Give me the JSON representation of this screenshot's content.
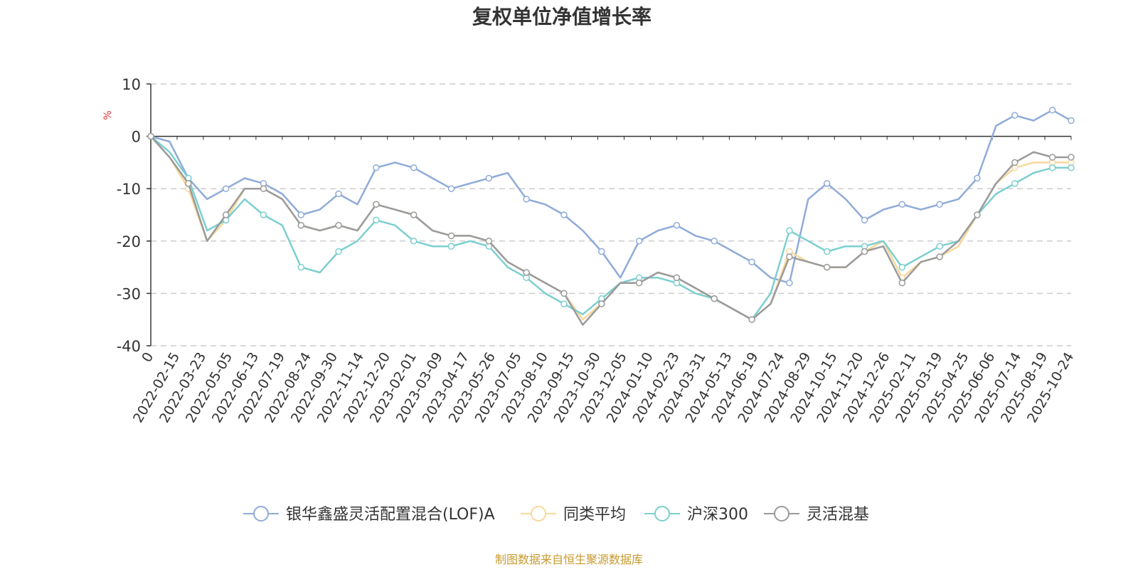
{
  "chart_data": {
    "type": "line",
    "title": "复权单位净值增长率",
    "ylabel": "%",
    "xlabel": "",
    "ylim": [
      -40,
      10
    ],
    "yticks": [
      10,
      0,
      -10,
      -20,
      -30,
      -40
    ],
    "grid": true,
    "legend_position": "bottom",
    "x_tick_labels": [
      "0",
      "2022-02-15",
      "2022-03-23",
      "2022-05-05",
      "2022-06-13",
      "2022-07-19",
      "2022-08-24",
      "2022-09-30",
      "2022-11-14",
      "2022-12-20",
      "2023-02-01",
      "2023-03-09",
      "2023-04-17",
      "2023-05-26",
      "2023-07-05",
      "2023-08-10",
      "2023-09-15",
      "2023-10-30",
      "2023-12-05",
      "2024-01-10",
      "2024-02-23",
      "2024-03-31",
      "2024-05-13",
      "2024-06-19",
      "2024-07-24",
      "2024-08-29",
      "2024-10-15",
      "2024-11-20",
      "2024-12-26",
      "2025-02-11",
      "2025-03-19",
      "2025-04-25",
      "2025-06-06",
      "2025-07-14",
      "2025-08-19",
      "2025-10-24"
    ],
    "series": [
      {
        "name": "银华鑫盛灵活配置混合(LOF)A",
        "color": "#8fabd8",
        "values": [
          0,
          -1,
          -8,
          -12,
          -10,
          -8,
          -9,
          -11,
          -15,
          -14,
          -11,
          -13,
          -6,
          -5,
          -6,
          -8,
          -10,
          -9,
          -8,
          -7,
          -12,
          -13,
          -15,
          -18,
          -22,
          -27,
          -20,
          -18,
          -17,
          -19,
          -20,
          -22,
          -24,
          -27,
          -28,
          -12,
          -9,
          -12,
          -16,
          -14,
          -13,
          -14,
          -13,
          -12,
          -8,
          2,
          4,
          3,
          5,
          3
        ]
      },
      {
        "name": "同类平均",
        "color": "#f9d89b",
        "values": [
          0,
          -4,
          -10,
          -20,
          -16,
          -10,
          -10,
          -12,
          -17,
          -18,
          -17,
          -18,
          -13,
          -14,
          -15,
          -18,
          -19,
          -19,
          -20,
          -24,
          -26,
          -28,
          -30,
          -35,
          -32,
          -28,
          -28,
          -26,
          -27,
          -29,
          -31,
          -33,
          -35,
          -32,
          -22,
          -24,
          -25,
          -25,
          -22,
          -20,
          -27,
          -24,
          -23,
          -21,
          -15,
          -9,
          -6,
          -5,
          -5,
          -5
        ]
      },
      {
        "name": "沪深300",
        "color": "#7ccfd0",
        "values": [
          0,
          -3,
          -8,
          -18,
          -16,
          -12,
          -15,
          -17,
          -25,
          -26,
          -22,
          -20,
          -16,
          -17,
          -20,
          -21,
          -21,
          -20,
          -21,
          -25,
          -27,
          -30,
          -32,
          -34,
          -31,
          -28,
          -27,
          -27,
          -28,
          -30,
          -31,
          -33,
          -35,
          -30,
          -18,
          -20,
          -22,
          -21,
          -21,
          -20,
          -25,
          -23,
          -21,
          -20,
          -15,
          -11,
          -9,
          -7,
          -6,
          -6
        ]
      },
      {
        "name": "灵活混基",
        "color": "#9a9a9a",
        "values": [
          0,
          -4,
          -9,
          -20,
          -15,
          -10,
          -10,
          -12,
          -17,
          -18,
          -17,
          -18,
          -13,
          -14,
          -15,
          -18,
          -19,
          -19,
          -20,
          -24,
          -26,
          -28,
          -30,
          -36,
          -32,
          -28,
          -28,
          -26,
          -27,
          -29,
          -31,
          -33,
          -35,
          -32,
          -23,
          -24,
          -25,
          -25,
          -22,
          -21,
          -28,
          -24,
          -23,
          -20,
          -15,
          -9,
          -5,
          -3,
          -4,
          -4
        ]
      }
    ]
  },
  "footer": {
    "source": "制图数据来自恒生聚源数据库"
  }
}
